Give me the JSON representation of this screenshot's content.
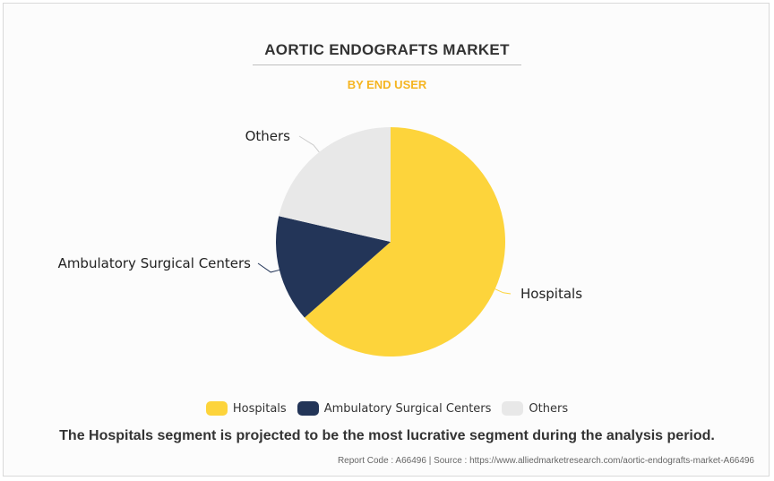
{
  "chart_data": {
    "type": "pie",
    "title": "AORTIC ENDOGRAFTS MARKET",
    "subtitle": "BY END USER",
    "categories": [
      "Hospitals",
      "Ambulatory Surgical Centers",
      "Others"
    ],
    "values": [
      63.5,
      15.1,
      21.4
    ],
    "colors": [
      "#fdd43b",
      "#233558",
      "#e8e8e8"
    ],
    "legend_position": "bottom"
  },
  "caption": "The Hospitals segment is projected to be the most lucrative segment during the analysis period.",
  "source_line": "Report Code : A66496  |  Source : https://www.alliedmarketresearch.com/aortic-endografts-market-A66496"
}
